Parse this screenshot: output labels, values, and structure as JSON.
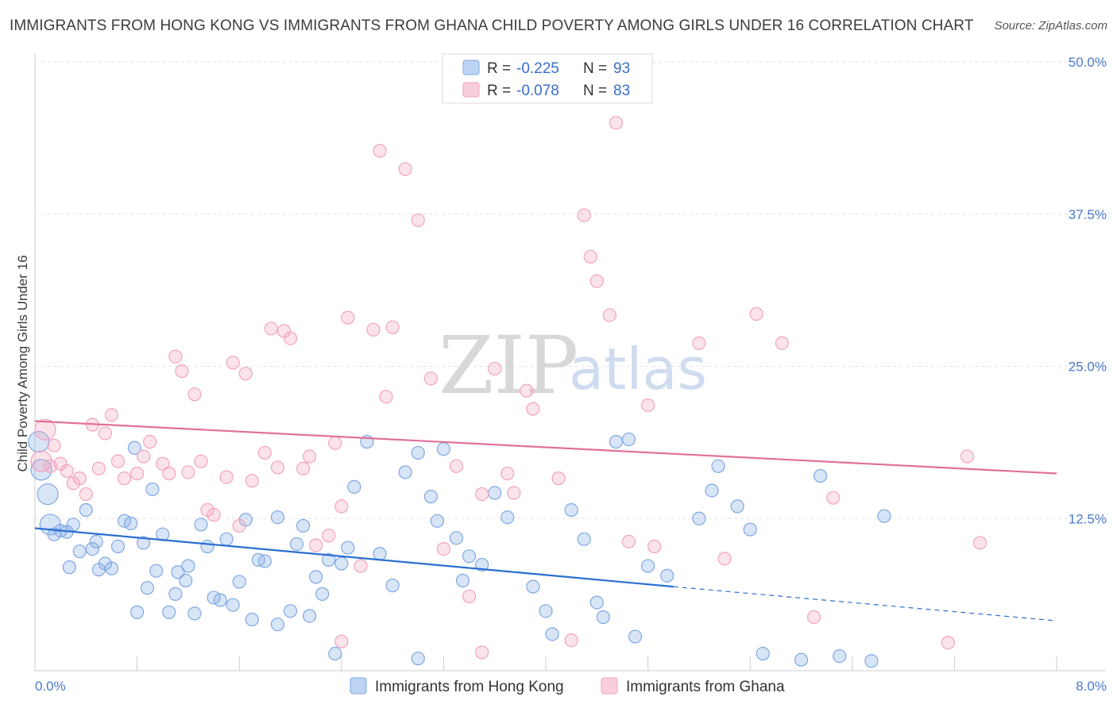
{
  "title": "IMMIGRANTS FROM HONG KONG VS IMMIGRANTS FROM GHANA CHILD POVERTY AMONG GIRLS UNDER 16 CORRELATION CHART",
  "source": "Source: ZipAtlas.com",
  "watermark": {
    "zip": "ZIP",
    "atlas": "atlas"
  },
  "colors": {
    "hongkong": "#7fa8e3",
    "ghana": "#f2a3bd",
    "hongkong_line": "#2b6fd1",
    "ghana_line": "#e0709a"
  },
  "legend": {
    "r_label": "R =",
    "n_label": "N =",
    "rows": [
      {
        "r": "-0.225",
        "n": "93"
      },
      {
        "r": "-0.078",
        "n": "83"
      }
    ]
  },
  "bottom_legend": [
    "Immigrants from Hong Kong",
    "Immigrants from Ghana"
  ],
  "chart_data": {
    "type": "scatter",
    "title": "IMMIGRANTS FROM HONG KONG VS IMMIGRANTS FROM GHANA CHILD POVERTY AMONG GIRLS UNDER 16 CORRELATION CHART",
    "xlabel": "",
    "ylabel": "Child Poverty Among Girls Under 16",
    "xlim": [
      0,
      8
    ],
    "ylim": [
      0,
      50
    ],
    "x_tick_labels": [
      "0.0%",
      "8.0%"
    ],
    "y_ticks": [
      12.5,
      25.0,
      37.5,
      50.0
    ],
    "y_tick_labels": [
      "12.5%",
      "25.0%",
      "37.5%",
      "50.0%"
    ],
    "grid": true,
    "legend_position": "top-center",
    "series": [
      {
        "name": "Immigrants from Hong Kong",
        "trend": {
          "x0": 0,
          "y0": 11.7,
          "x1": 5.0,
          "y1": 6.9,
          "dashed_to_x": 8.0,
          "dashed_to_y": 4.1
        },
        "points": [
          [
            0.03,
            18.8
          ],
          [
            0.05,
            16.5
          ],
          [
            0.1,
            14.5
          ],
          [
            0.12,
            12.0
          ],
          [
            0.15,
            11.2
          ],
          [
            0.2,
            11.5
          ],
          [
            0.25,
            11.4
          ],
          [
            0.27,
            8.5
          ],
          [
            0.3,
            12.0
          ],
          [
            0.35,
            9.8
          ],
          [
            0.4,
            13.2
          ],
          [
            0.45,
            10.0
          ],
          [
            0.48,
            10.6
          ],
          [
            0.5,
            8.3
          ],
          [
            0.55,
            8.8
          ],
          [
            0.6,
            8.4
          ],
          [
            0.65,
            10.2
          ],
          [
            0.7,
            12.3
          ],
          [
            0.75,
            12.1
          ],
          [
            0.78,
            18.3
          ],
          [
            0.8,
            4.8
          ],
          [
            0.85,
            10.5
          ],
          [
            0.88,
            6.8
          ],
          [
            0.92,
            14.9
          ],
          [
            0.95,
            8.2
          ],
          [
            1.0,
            11.2
          ],
          [
            1.05,
            4.8
          ],
          [
            1.1,
            6.3
          ],
          [
            1.12,
            8.1
          ],
          [
            1.18,
            7.4
          ],
          [
            1.25,
            4.7
          ],
          [
            1.2,
            8.6
          ],
          [
            1.3,
            12.0
          ],
          [
            1.35,
            10.2
          ],
          [
            1.4,
            6.0
          ],
          [
            1.45,
            5.8
          ],
          [
            1.5,
            10.8
          ],
          [
            1.55,
            5.4
          ],
          [
            1.6,
            7.3
          ],
          [
            1.65,
            12.4
          ],
          [
            1.7,
            4.2
          ],
          [
            1.75,
            9.1
          ],
          [
            1.8,
            9.0
          ],
          [
            1.9,
            12.6
          ],
          [
            2.0,
            4.9
          ],
          [
            2.05,
            10.4
          ],
          [
            2.1,
            11.9
          ],
          [
            2.2,
            7.7
          ],
          [
            2.25,
            6.3
          ],
          [
            2.3,
            9.1
          ],
          [
            2.4,
            8.8
          ],
          [
            2.45,
            10.1
          ],
          [
            2.5,
            15.1
          ],
          [
            2.6,
            18.8
          ],
          [
            2.7,
            9.6
          ],
          [
            2.8,
            7.0
          ],
          [
            2.9,
            16.3
          ],
          [
            3.0,
            17.9
          ],
          [
            3.1,
            14.3
          ],
          [
            3.15,
            12.3
          ],
          [
            3.2,
            18.2
          ],
          [
            3.3,
            10.9
          ],
          [
            3.35,
            7.4
          ],
          [
            3.4,
            9.4
          ],
          [
            3.5,
            8.7
          ],
          [
            3.6,
            14.6
          ],
          [
            3.7,
            12.6
          ],
          [
            3.9,
            6.9
          ],
          [
            4.0,
            4.9
          ],
          [
            4.05,
            3.0
          ],
          [
            4.2,
            13.2
          ],
          [
            4.3,
            10.8
          ],
          [
            4.4,
            5.6
          ],
          [
            4.45,
            4.4
          ],
          [
            4.55,
            18.8
          ],
          [
            4.65,
            19.0
          ],
          [
            4.7,
            2.8
          ],
          [
            4.8,
            8.6
          ],
          [
            4.95,
            7.8
          ],
          [
            5.2,
            12.5
          ],
          [
            5.3,
            14.8
          ],
          [
            5.35,
            16.8
          ],
          [
            5.5,
            13.5
          ],
          [
            5.6,
            11.6
          ],
          [
            5.7,
            1.4
          ],
          [
            6.0,
            0.9
          ],
          [
            6.15,
            16.0
          ],
          [
            6.3,
            1.2
          ],
          [
            6.55,
            0.8
          ],
          [
            6.65,
            12.7
          ],
          [
            3.0,
            1.0
          ],
          [
            2.35,
            1.4
          ],
          [
            1.9,
            3.8
          ],
          [
            2.15,
            4.5
          ]
        ]
      },
      {
        "name": "Immigrants from Ghana",
        "trend": {
          "x0": 0,
          "y0": 20.5,
          "x1": 8.0,
          "y1": 16.2
        },
        "points": [
          [
            0.05,
            17.2
          ],
          [
            0.08,
            19.8
          ],
          [
            0.12,
            16.8
          ],
          [
            0.15,
            18.5
          ],
          [
            0.2,
            17.0
          ],
          [
            0.25,
            16.4
          ],
          [
            0.3,
            15.4
          ],
          [
            0.35,
            15.8
          ],
          [
            0.4,
            14.5
          ],
          [
            0.45,
            20.2
          ],
          [
            0.5,
            16.6
          ],
          [
            0.55,
            19.5
          ],
          [
            0.6,
            21.0
          ],
          [
            0.65,
            17.2
          ],
          [
            0.7,
            15.8
          ],
          [
            0.8,
            16.2
          ],
          [
            0.85,
            17.6
          ],
          [
            0.9,
            18.8
          ],
          [
            1.0,
            17.0
          ],
          [
            1.05,
            16.2
          ],
          [
            1.1,
            25.8
          ],
          [
            1.15,
            24.6
          ],
          [
            1.2,
            16.3
          ],
          [
            1.25,
            22.7
          ],
          [
            1.3,
            17.2
          ],
          [
            1.35,
            13.2
          ],
          [
            1.4,
            12.8
          ],
          [
            1.5,
            15.9
          ],
          [
            1.55,
            25.3
          ],
          [
            1.6,
            11.9
          ],
          [
            1.65,
            24.4
          ],
          [
            1.7,
            15.6
          ],
          [
            1.8,
            17.9
          ],
          [
            1.85,
            28.1
          ],
          [
            1.9,
            16.7
          ],
          [
            1.95,
            27.9
          ],
          [
            2.0,
            27.3
          ],
          [
            2.1,
            16.6
          ],
          [
            2.15,
            17.6
          ],
          [
            2.2,
            10.3
          ],
          [
            2.3,
            11.1
          ],
          [
            2.35,
            18.7
          ],
          [
            2.4,
            13.5
          ],
          [
            2.45,
            29.0
          ],
          [
            2.55,
            8.6
          ],
          [
            2.65,
            28.0
          ],
          [
            2.7,
            42.7
          ],
          [
            2.75,
            22.5
          ],
          [
            2.8,
            28.2
          ],
          [
            2.9,
            41.2
          ],
          [
            3.0,
            37.0
          ],
          [
            3.1,
            24.0
          ],
          [
            3.2,
            10.0
          ],
          [
            3.3,
            16.8
          ],
          [
            3.4,
            6.1
          ],
          [
            3.5,
            14.5
          ],
          [
            3.6,
            24.8
          ],
          [
            3.7,
            16.2
          ],
          [
            3.75,
            14.6
          ],
          [
            3.85,
            23.0
          ],
          [
            3.9,
            21.5
          ],
          [
            4.1,
            15.8
          ],
          [
            4.2,
            2.5
          ],
          [
            4.3,
            37.4
          ],
          [
            4.35,
            34.0
          ],
          [
            4.4,
            32.0
          ],
          [
            4.5,
            29.2
          ],
          [
            4.55,
            45.0
          ],
          [
            4.6,
            48.9
          ],
          [
            4.65,
            10.6
          ],
          [
            4.8,
            21.8
          ],
          [
            4.85,
            10.2
          ],
          [
            5.2,
            26.9
          ],
          [
            5.4,
            9.2
          ],
          [
            5.65,
            29.3
          ],
          [
            5.85,
            26.9
          ],
          [
            6.1,
            4.4
          ],
          [
            6.25,
            14.2
          ],
          [
            7.15,
            2.3
          ],
          [
            7.3,
            17.6
          ],
          [
            7.4,
            10.5
          ],
          [
            3.5,
            1.5
          ],
          [
            2.4,
            2.4
          ]
        ]
      }
    ]
  }
}
